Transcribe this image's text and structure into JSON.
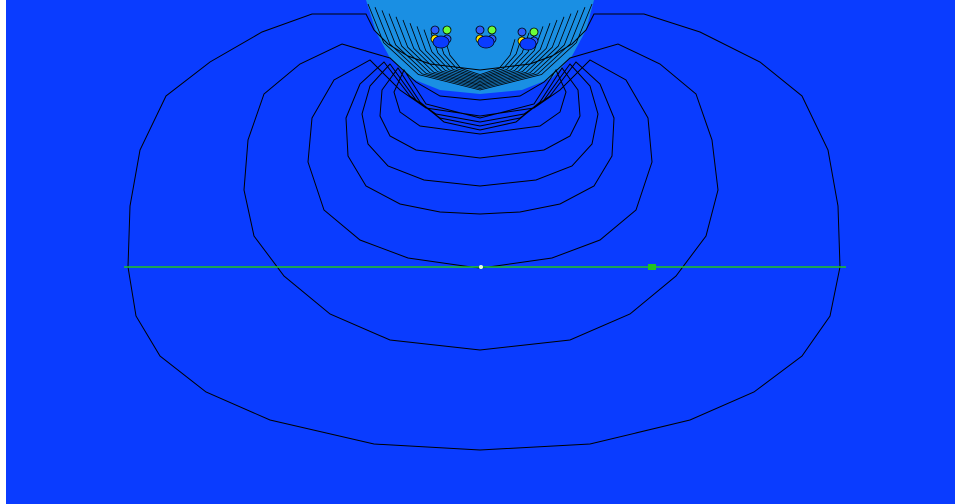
{
  "plot": {
    "background_color": "#ffffff",
    "field_color": "#0a3cff",
    "high_field_color": "#1a8fe3",
    "contour_color": "#000000",
    "evaluation_line_color": "#22c322",
    "evaluation_marker_color": "#22c322",
    "conductor_color": "#0a3cff",
    "hotspot_colors": [
      "#2a5bff",
      "#6cff3a",
      "#ffe400"
    ],
    "conductor_count": 3
  }
}
